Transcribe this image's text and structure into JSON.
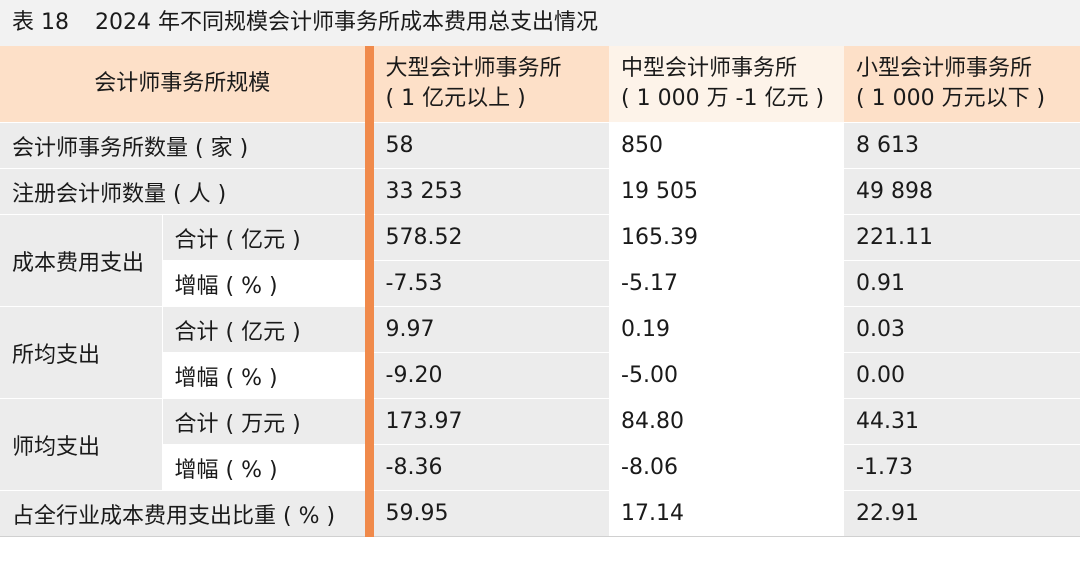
{
  "caption": {
    "label": "表 18",
    "title": "2024 年不同规模会计师事务所成本费用总支出情况"
  },
  "header": {
    "row_label": "会计师事务所规模",
    "columns": [
      {
        "line1": "大型会计师事务所",
        "line2": "( 1 亿元以上 )"
      },
      {
        "line1": "中型会计师事务所",
        "line2": "( 1 000 万 -1 亿元 )"
      },
      {
        "line1": "小型会计师事务所",
        "line2": "( 1 000 万元以下 )"
      }
    ]
  },
  "rows": {
    "firm_count": {
      "label": "会计师事务所数量 ( 家 )",
      "values": [
        "58",
        "850",
        "8 613"
      ]
    },
    "cpa_count": {
      "label": "注册会计师数量 ( 人 )",
      "values": [
        "33 253",
        "19 505",
        "49 898"
      ]
    },
    "cost": {
      "group": "成本费用支出",
      "total": {
        "label": "合计 ( 亿元 )",
        "values": [
          "578.52",
          "165.39",
          "221.11"
        ]
      },
      "growth": {
        "label": "增幅 ( % )",
        "values": [
          "-7.53",
          "-5.17",
          "0.91"
        ]
      }
    },
    "per_firm": {
      "group": "所均支出",
      "total": {
        "label": "合计 ( 亿元 )",
        "values": [
          "9.97",
          "0.19",
          "0.03"
        ]
      },
      "growth": {
        "label": "增幅 ( % )",
        "values": [
          "-9.20",
          "-5.00",
          "0.00"
        ]
      }
    },
    "per_cpa": {
      "group": "师均支出",
      "total": {
        "label": "合计 ( 万元 )",
        "values": [
          "173.97",
          "84.80",
          "44.31"
        ]
      },
      "growth": {
        "label": "增幅 ( % )",
        "values": [
          "-8.36",
          "-8.06",
          "-1.73"
        ]
      }
    },
    "share": {
      "label": "占全行业成本费用支出比重 ( % )",
      "values": [
        "59.95",
        "17.14",
        "22.91"
      ]
    }
  },
  "colors": {
    "accent_bar": "#f08a4b",
    "header_peach": "#fde0c8",
    "header_cream": "#fdf3e9",
    "gray": "#ececec"
  }
}
